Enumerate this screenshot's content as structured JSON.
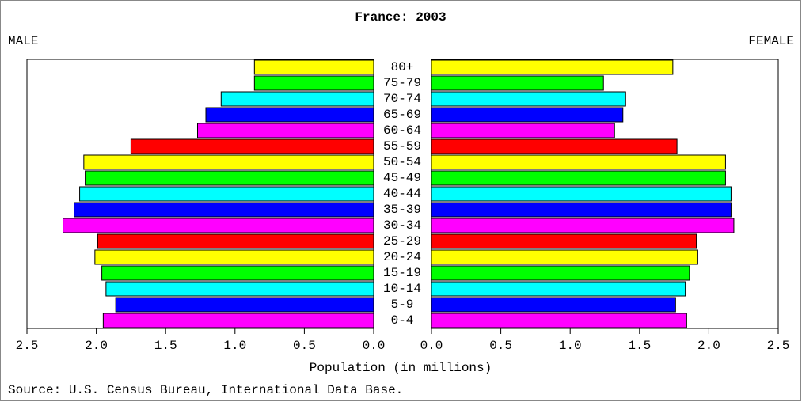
{
  "chart_data": {
    "type": "pyramid",
    "title": "France: 2003",
    "x_label": "Population (in millions)",
    "source": "Source: U.S. Census Bureau, International Data Base.",
    "categories": [
      "0-4",
      "5-9",
      "10-14",
      "15-19",
      "20-24",
      "25-29",
      "30-34",
      "35-39",
      "40-44",
      "45-49",
      "50-54",
      "55-59",
      "60-64",
      "65-69",
      "70-74",
      "75-79",
      "80+"
    ],
    "colors": [
      "#ff00ff",
      "#0000ff",
      "#00ffff",
      "#00ff00",
      "#ffff00",
      "#ff0000",
      "#ff00ff",
      "#0000ff",
      "#00ffff",
      "#00ff00",
      "#ffff00",
      "#ff0000",
      "#ff00ff",
      "#0000ff",
      "#00ffff",
      "#00ff00",
      "#ffff00"
    ],
    "series": [
      {
        "name": "MALE",
        "side": "left",
        "values": [
          1.95,
          1.86,
          1.93,
          1.96,
          2.01,
          1.99,
          2.24,
          2.16,
          2.12,
          2.08,
          2.09,
          1.75,
          1.27,
          1.21,
          1.1,
          0.86,
          0.86
        ]
      },
      {
        "name": "FEMALE",
        "side": "right",
        "values": [
          1.84,
          1.76,
          1.83,
          1.86,
          1.92,
          1.91,
          2.18,
          2.16,
          2.16,
          2.12,
          2.12,
          1.77,
          1.32,
          1.38,
          1.4,
          1.24,
          1.74
        ]
      }
    ],
    "xlim": [
      0,
      2.5
    ],
    "xticks": [
      {
        "value": 0,
        "label": "0.0"
      },
      0.5,
      {
        "value": 1,
        "label": "1.0"
      },
      1.5,
      {
        "value": 2,
        "label": "2.0"
      },
      2.5
    ]
  }
}
